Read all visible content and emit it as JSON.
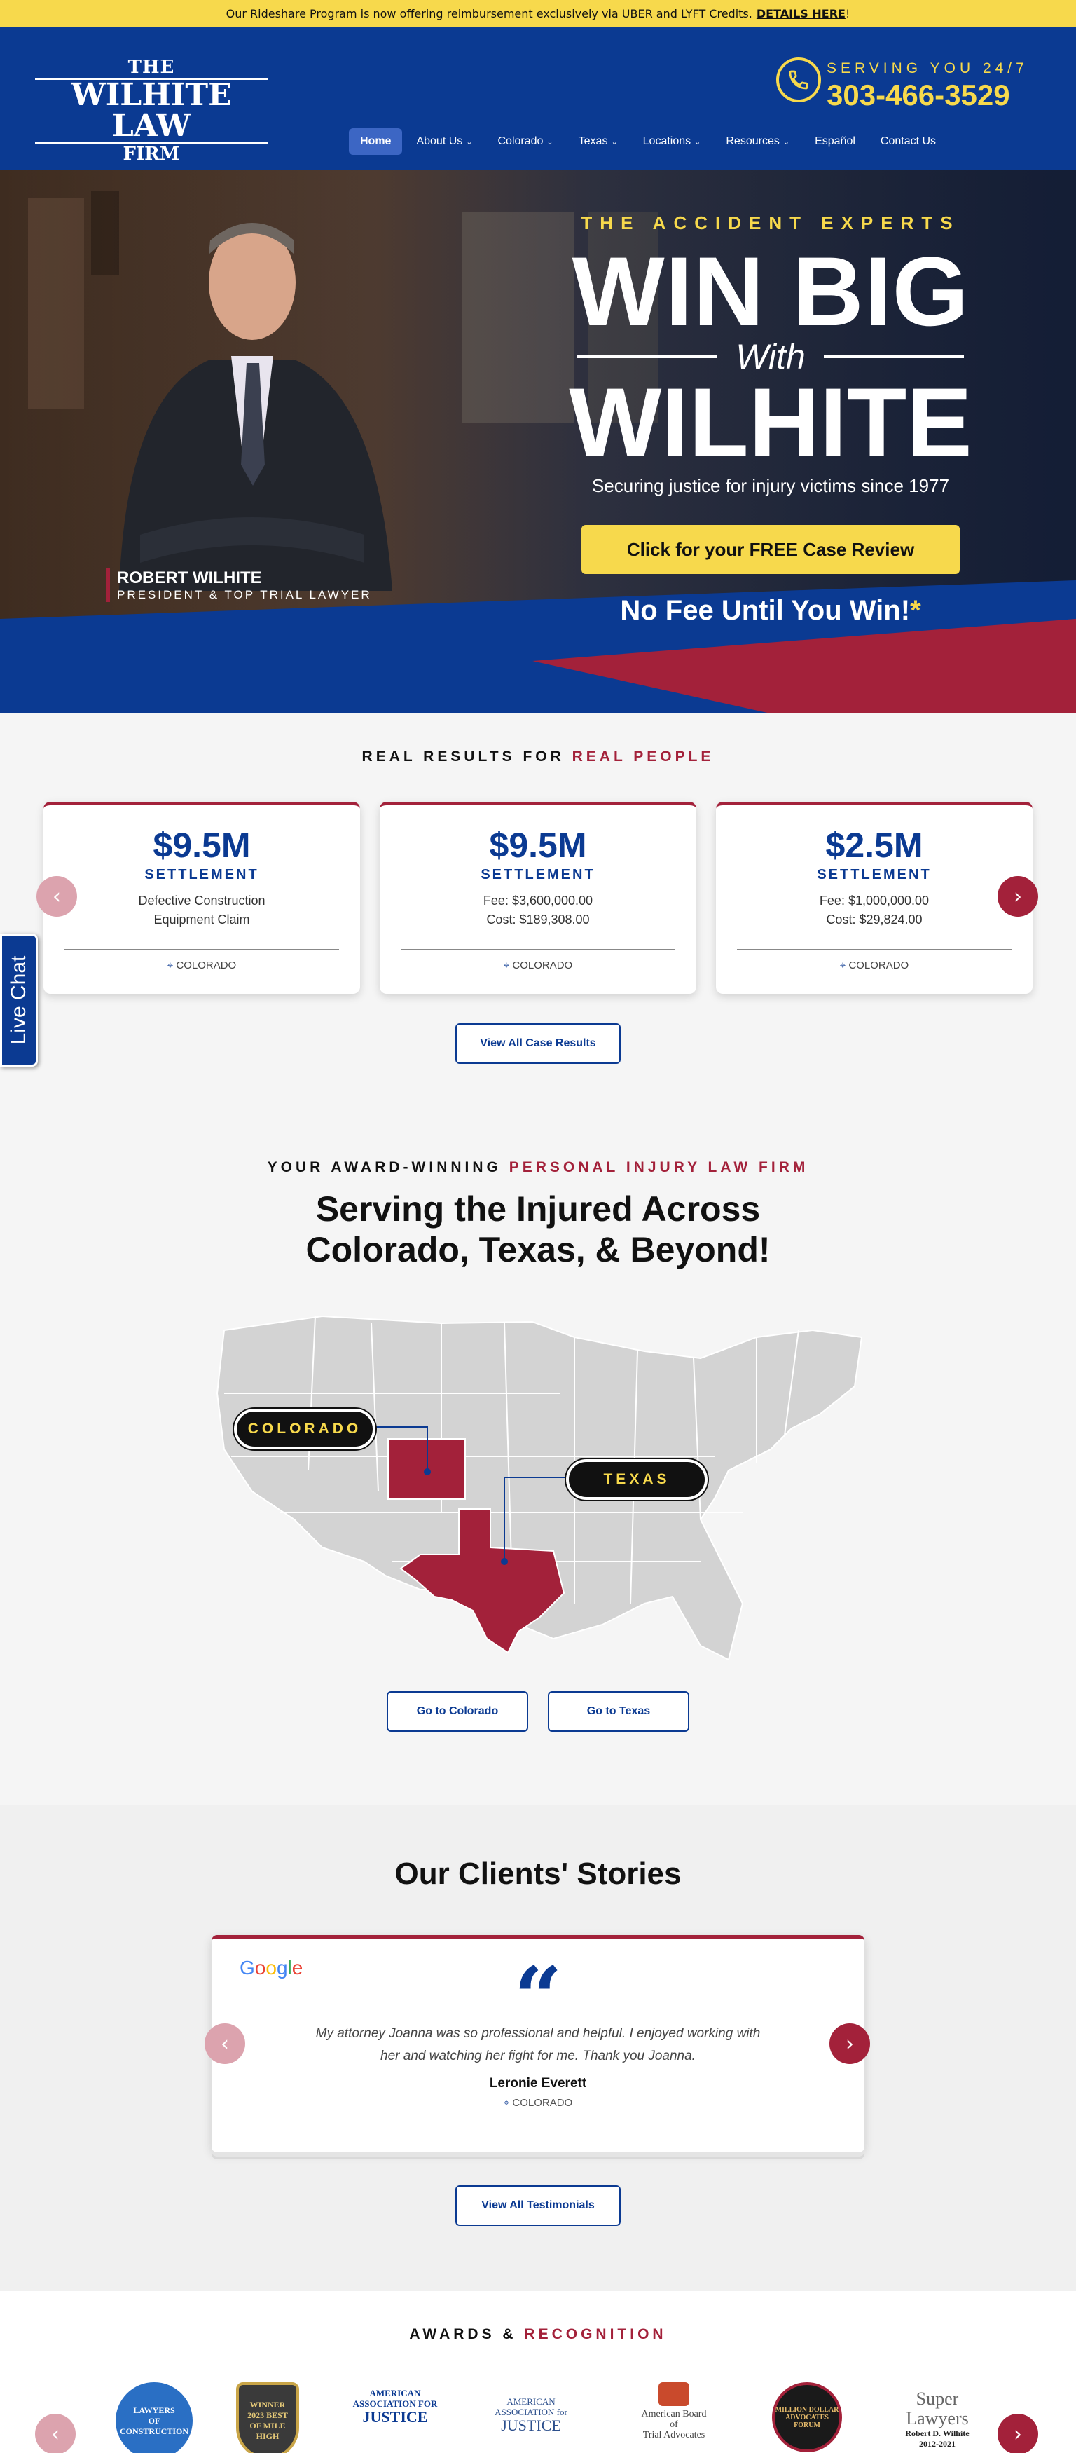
{
  "topbar": {
    "message": "Our Rideshare Program is now offering reimbursement exclusively via UBER and LYFT Credits.",
    "link": "DETAILS HERE",
    "end": "!"
  },
  "header": {
    "logo": {
      "the": "THE",
      "main": "WILHITE LAW",
      "firm": "FIRM"
    },
    "serving": "SERVING YOU 24/7",
    "phone": "303-466-3529",
    "nav": [
      "Home",
      "About Us",
      "Colorado",
      "Texas",
      "Locations",
      "Resources",
      "Español",
      "Contact Us"
    ],
    "nav_dropdowns": [
      false,
      true,
      true,
      true,
      true,
      true,
      false,
      false
    ]
  },
  "hero": {
    "kicker": "THE ACCIDENT EXPERTS",
    "line1": "WIN BIG",
    "with": "With",
    "line2": "WILHITE",
    "since": "Securing justice for injury victims since 1977",
    "cta": "Click for your FREE Case Review",
    "nofee": "No Fee Until You Win!",
    "star": "*",
    "lawyer_name": "ROBERT WILHITE",
    "lawyer_title": "PRESIDENT & TOP TRIAL LAWYER"
  },
  "results": {
    "kicker_a": "REAL RESULTS FOR ",
    "kicker_b": "REAL PEOPLE",
    "cards": [
      {
        "amount": "$9.5M",
        "label": "SETTLEMENT",
        "line1": "Defective Construction",
        "line2": "Equipment Claim",
        "location": "COLORADO"
      },
      {
        "amount": "$9.5M",
        "label": "SETTLEMENT",
        "line1": "Fee: $3,600,000.00",
        "line2": "Cost: $189,308.00",
        "location": "COLORADO"
      },
      {
        "amount": "$2.5M",
        "label": "SETTLEMENT",
        "line1": "Fee: $1,000,000.00",
        "line2": "Cost: $29,824.00",
        "location": "COLORADO"
      }
    ],
    "view_all": "View All Case Results"
  },
  "livechat": "Live Chat",
  "coverage": {
    "kicker_a": "YOUR AWARD-WINNING ",
    "kicker_b": "PERSONAL INJURY LAW FIRM",
    "title_line1": "Serving the Injured Across",
    "title_line2": "Colorado, Texas, & Beyond!",
    "colorado": "COLORADO",
    "texas": "TEXAS",
    "btn_colorado": "Go to Colorado",
    "btn_texas": "Go to Texas"
  },
  "stories": {
    "title": "Our Clients' Stories",
    "google": "Google",
    "quote_mark": "“",
    "text": "My attorney Joanna was so professional and helpful. I enjoyed working with her and watching her fight for me. Thank you Joanna.",
    "author": "Leronie Everett",
    "location": "COLORADO",
    "view_all": "View All Testimonials"
  },
  "awards": {
    "kicker_a": "AWARDS & ",
    "kicker_b": "RECOGNITION",
    "items": [
      {
        "l1": "LAWYERS",
        "l2": "OF",
        "l3": "CONSTRUCTION"
      },
      {
        "l1": "WINNER",
        "l2": "2023 BEST",
        "l3": "OF MILE HIGH"
      },
      {
        "l1": "AMERICAN",
        "l2": "ASSOCIATION FOR",
        "l3": "JUSTICE"
      },
      {
        "l1": "AMERICAN",
        "l2": "ASSOCIATION for",
        "l3": "JUSTICE"
      },
      {
        "l1": "American Board",
        "l2": "of",
        "l3": "Trial Advocates"
      },
      {
        "l1": "MILLION DOLLAR",
        "l2": "ADVOCATES",
        "l3": "FORUM"
      },
      {
        "l1": "Super Lawyers",
        "l2": "Robert D. Wilhite",
        "l3": "2012-2021"
      }
    ]
  },
  "colors": {
    "blue": "#0b3a92",
    "red": "#a3213a",
    "yellow": "#f7d94c"
  },
  "icons": [
    "phone-icon",
    "chevron-down-icon",
    "map-pin-icon",
    "arrow-left-icon",
    "arrow-right-icon",
    "quote-icon"
  ]
}
